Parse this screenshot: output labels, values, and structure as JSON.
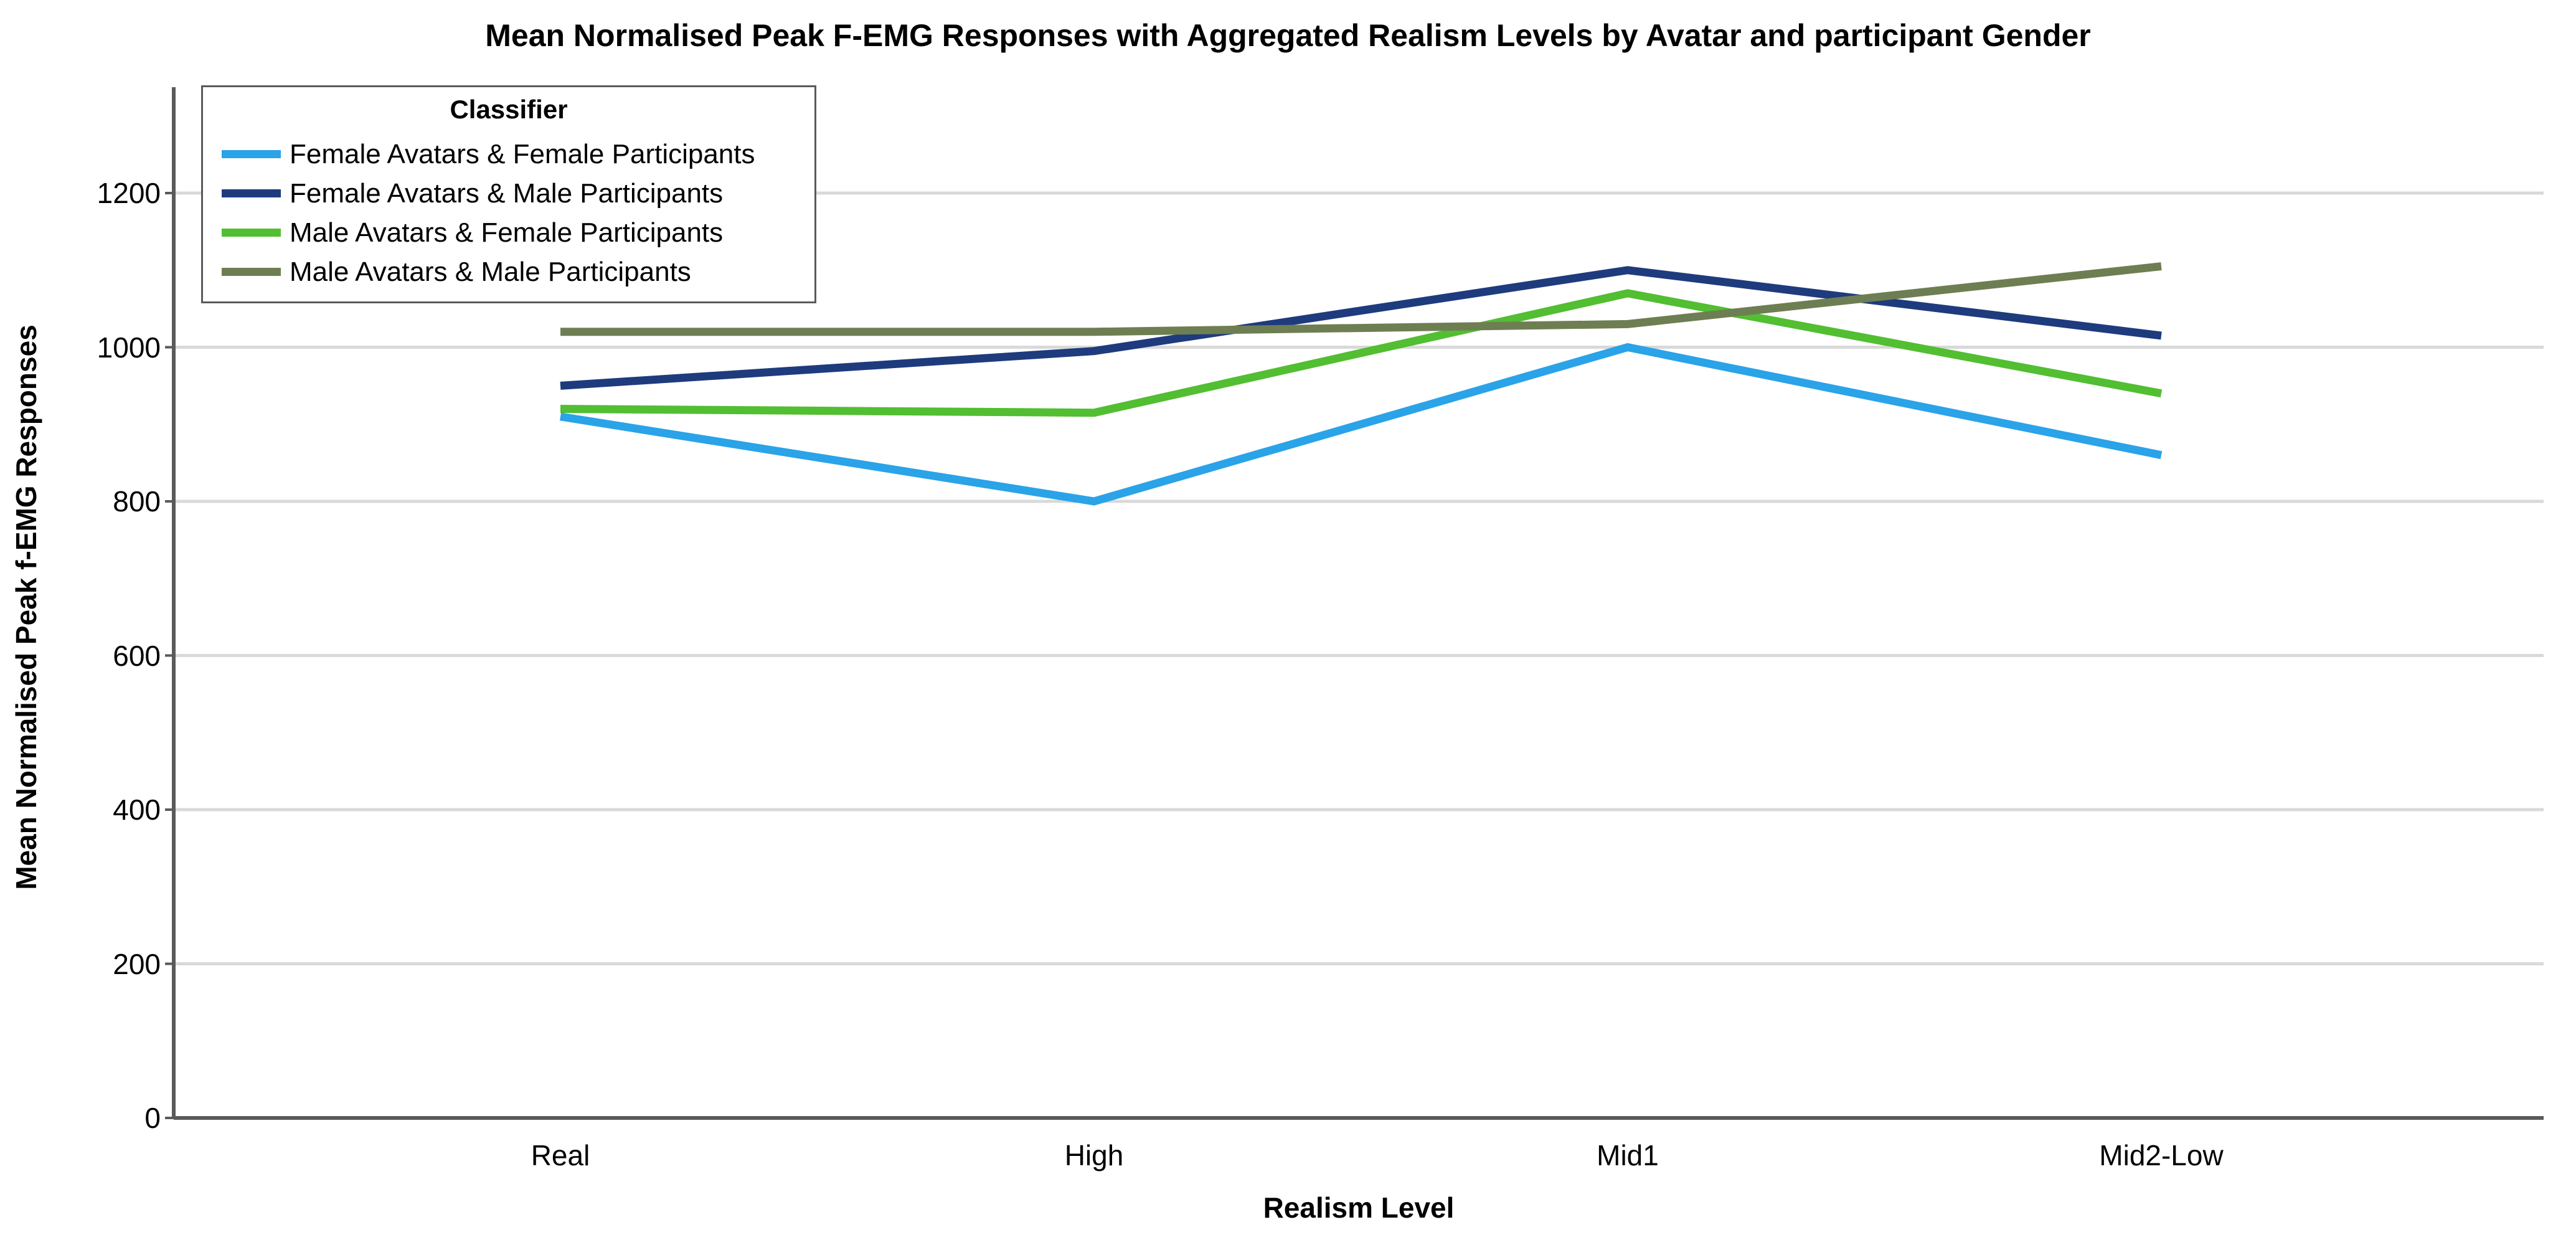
{
  "title": "Mean Normalised Peak F-EMG Responses with Aggregated Realism Levels by Avatar and participant Gender",
  "y_axis": {
    "label": "Mean Normalised Peak f-EMG Responses",
    "ticks": [
      0,
      200,
      400,
      600,
      800,
      1000,
      1200
    ]
  },
  "x_axis": {
    "label": "Realism Level"
  },
  "legend": {
    "title": "Classifier"
  },
  "colors": {
    "gridline": "#d9d9d9",
    "axis": "#5a5a5a",
    "background": "#ffffff",
    "text": "#000000"
  },
  "chart_data": {
    "type": "line",
    "categories": [
      "Real",
      "High",
      "Mid1",
      "Mid2-Low"
    ],
    "series": [
      {
        "name": "Female Avatars & Female Participants",
        "color": "#2aa3e8",
        "values": [
          910,
          800,
          1000,
          860
        ]
      },
      {
        "name": "Female Avatars & Male Participants",
        "color": "#1e3b7d",
        "values": [
          950,
          995,
          1100,
          1015
        ]
      },
      {
        "name": "Male Avatars & Female Participants",
        "color": "#52be32",
        "values": [
          920,
          915,
          1070,
          940
        ]
      },
      {
        "name": "Male Avatars & Male Participants",
        "color": "#6e7e53",
        "values": [
          1020,
          1020,
          1030,
          1105
        ]
      }
    ],
    "title": "Mean Normalised Peak F-EMG Responses with Aggregated Realism Levels by Avatar and participant Gender",
    "xlabel": "Realism Level",
    "ylabel": "Mean Normalised Peak f-EMG Responses",
    "ylim": [
      0,
      1340
    ],
    "ytick_interval": 200,
    "grid": true,
    "legend_position": "top-left-inside"
  }
}
